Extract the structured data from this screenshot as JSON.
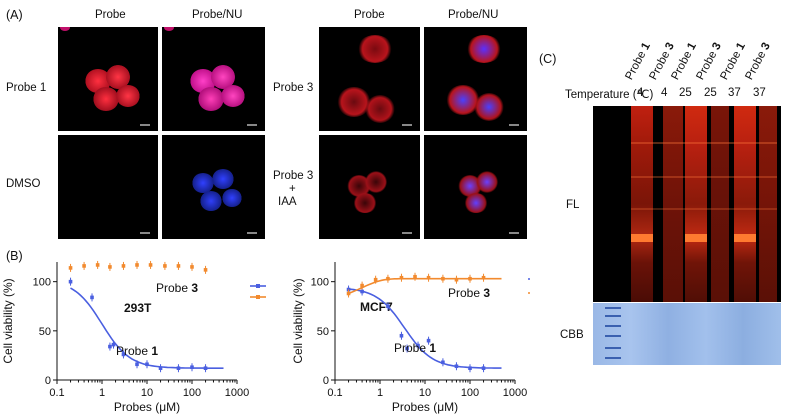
{
  "panel_a": {
    "letter": "(A)",
    "col_probe": "Probe",
    "col_probe_nu": "Probe/NU",
    "row_probe1": "Probe 1",
    "row_dmso": "DMSO",
    "row_probe3": "Probe 3",
    "row_probe3_iaa_line1": "Probe 3",
    "row_probe3_iaa_line2": "+",
    "row_probe3_iaa_line3": "IAA"
  },
  "panel_c": {
    "letter": "(C)",
    "temperature_label": "Temperature (℃)",
    "lanes": [
      {
        "probe": "Probe",
        "num": "1",
        "temp": "4"
      },
      {
        "probe": "Probe",
        "num": "3",
        "temp": "4"
      },
      {
        "probe": "Probe",
        "num": "1",
        "temp": "25"
      },
      {
        "probe": "Probe",
        "num": "3",
        "temp": "25"
      },
      {
        "probe": "Probe",
        "num": "1",
        "temp": "37"
      },
      {
        "probe": "Probe",
        "num": "3",
        "temp": "37"
      }
    ],
    "fl_label": "FL",
    "cbb_label": "CBB"
  },
  "panel_b": {
    "letter": "(B)"
  },
  "chart_data": [
    {
      "type": "scatter",
      "annotation_cell": "293T",
      "xlabel": "Probes (μM)",
      "ylabel": "Cell viability (%)",
      "xscale": "log",
      "xlim": [
        0.1,
        1000
      ],
      "ylim": [
        0,
        120
      ],
      "xticks": [
        "0.1",
        "1",
        "10",
        "100",
        "1000"
      ],
      "yticks": [
        "0",
        "50",
        "100"
      ],
      "series": [
        {
          "name": "Probe 1",
          "label": "Probe",
          "label_num": "1",
          "color": "#4a5fe0",
          "x": [
            0.2,
            0.6,
            1.5,
            1.8,
            3,
            6,
            10,
            20,
            50,
            100,
            200
          ],
          "y": [
            100,
            84,
            34,
            36,
            26,
            16,
            16,
            12,
            12,
            13,
            12
          ],
          "fit": "decreasing",
          "ic50": 1.0
        },
        {
          "name": "Probe 3",
          "label": "Probe",
          "label_num": "3",
          "color": "#f28a2e",
          "x": [
            0.2,
            0.4,
            0.8,
            1.5,
            3,
            6,
            12,
            25,
            50,
            100,
            200
          ],
          "y": [
            114,
            116,
            117,
            115,
            116,
            117,
            117,
            116,
            116,
            115,
            112
          ],
          "fit": "none"
        }
      ]
    },
    {
      "type": "scatter",
      "annotation_cell": "MCF7",
      "xlabel": "Probes (μM)",
      "ylabel": "Cell viability (%)",
      "xscale": "log",
      "xlim": [
        0.1,
        1000
      ],
      "ylim": [
        0,
        120
      ],
      "xticks": [
        "0.1",
        "1",
        "10",
        "100",
        "1000"
      ],
      "yticks": [
        "0",
        "50",
        "100"
      ],
      "series": [
        {
          "name": "Probe 1",
          "label": "Probe",
          "label_num": "1",
          "color": "#4a5fe0",
          "x": [
            0.2,
            0.4,
            1.5,
            3,
            4,
            7,
            12,
            25,
            50,
            100,
            200
          ],
          "y": [
            92,
            90,
            75,
            45,
            32,
            35,
            40,
            18,
            14,
            12,
            12
          ],
          "fit": "decreasing",
          "ic50": 3.5
        },
        {
          "name": "Probe 3",
          "label": "Probe",
          "label_num": "3",
          "color": "#f28a2e",
          "x": [
            0.2,
            0.4,
            0.8,
            1.5,
            3,
            6,
            12,
            25,
            50,
            100,
            200
          ],
          "y": [
            88,
            96,
            102,
            103,
            104,
            105,
            104,
            103,
            102,
            103,
            104
          ],
          "fit": "flat"
        }
      ]
    }
  ]
}
